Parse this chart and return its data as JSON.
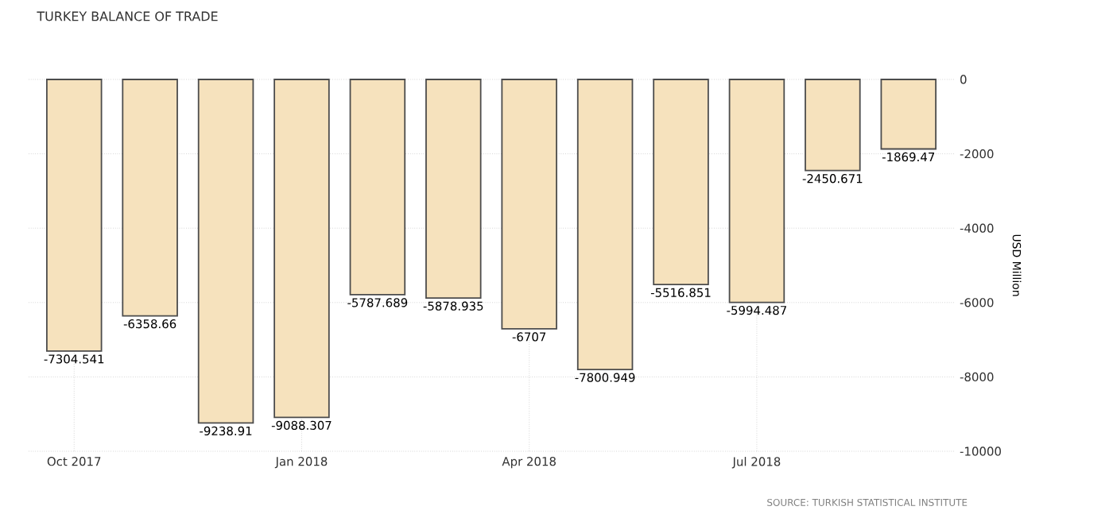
{
  "chart_data": {
    "type": "bar",
    "title": "TURKEY BALANCE OF TRADE",
    "ylabel": "USD Million",
    "categories": [
      "Oct 2017",
      null,
      null,
      "Jan 2018",
      null,
      null,
      "Apr 2018",
      null,
      null,
      "Jul 2018",
      null,
      null
    ],
    "values": [
      -7304.541,
      -6358.66,
      -9238.91,
      -9088.307,
      -5787.689,
      -5878.935,
      -6707,
      -7800.949,
      -5516.851,
      -5994.487,
      -2450.671,
      -1869.47
    ],
    "color": "#f6e2bd",
    "ylim": [
      -10000,
      0
    ],
    "yticks": [
      -10000,
      -8000,
      -6000,
      -4000,
      -2000,
      0
    ],
    "grid": true,
    "data_labels": true,
    "annotations": [
      "SOURCE: TURKISH STATISTICAL INSTITUTE"
    ]
  }
}
